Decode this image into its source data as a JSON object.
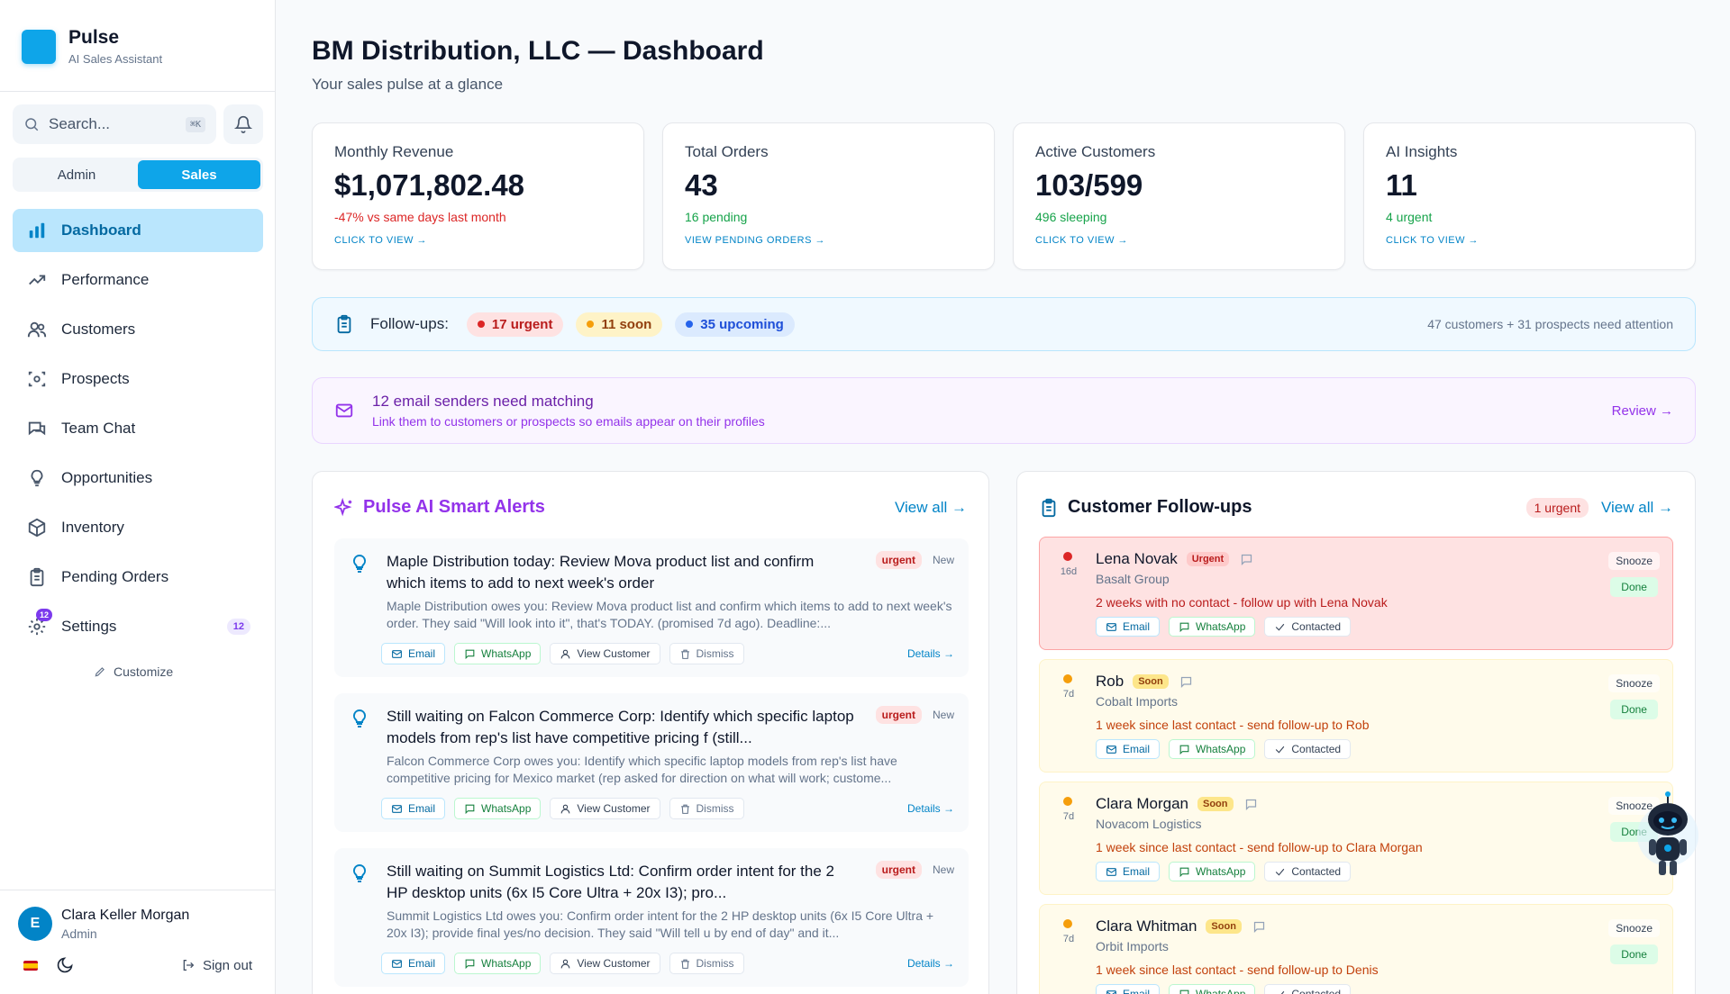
{
  "app": {
    "name": "Pulse",
    "subtitle": "AI Sales Assistant"
  },
  "search": {
    "placeholder": "Search...",
    "shortcut": "⌘K"
  },
  "roles": [
    "Admin",
    "Sales"
  ],
  "nav": [
    {
      "label": "Dashboard",
      "icon": "bar-chart-icon"
    },
    {
      "label": "Performance",
      "icon": "trending-up-icon"
    },
    {
      "label": "Customers",
      "icon": "users-icon"
    },
    {
      "label": "Prospects",
      "icon": "scan-target-icon"
    },
    {
      "label": "Team Chat",
      "icon": "chat-icon"
    },
    {
      "label": "Opportunities",
      "icon": "lightbulb-icon"
    },
    {
      "label": "Inventory",
      "icon": "box-icon"
    },
    {
      "label": "Pending Orders",
      "icon": "clipboard-icon"
    },
    {
      "label": "Settings",
      "icon": "gear-icon",
      "badge": "12"
    }
  ],
  "customize_label": "Customize",
  "user": {
    "initial": "E",
    "name": "Clara Keller Morgan",
    "role": "Admin"
  },
  "signout_label": "Sign out",
  "page": {
    "title": "BM Distribution, LLC — Dashboard",
    "subtitle": "Your sales pulse at a glance"
  },
  "stats": [
    {
      "label": "Monthly Revenue",
      "value": "$1,071,802.48",
      "sub": "-47% vs same days last month",
      "sub_color": "#dc2626",
      "link": "CLICK TO VIEW →"
    },
    {
      "label": "Total Orders",
      "value": "43",
      "sub": "16 pending",
      "sub_color": "#16a34a",
      "link": "VIEW PENDING ORDERS →"
    },
    {
      "label": "Active Customers",
      "value": "103/599",
      "sub": "496 sleeping",
      "sub_color": "#16a34a",
      "link": "CLICK TO VIEW →"
    },
    {
      "label": "AI Insights",
      "value": "11",
      "sub": "4 urgent",
      "sub_color": "#16a34a",
      "link": "CLICK TO VIEW →"
    }
  ],
  "followups_bar": {
    "label": "Follow-ups:",
    "urgent": "17 urgent",
    "soon": "11 soon",
    "upcoming": "35 upcoming",
    "summary": "47 customers + 31 prospects need attention"
  },
  "email_bar": {
    "title": "12 email senders need matching",
    "subtitle": "Link them to customers or prospects so emails appear on their profiles",
    "action": "Review →"
  },
  "alerts_panel": {
    "title": "Pulse AI Smart Alerts",
    "view_all": "View all →",
    "items": [
      {
        "title": "Maple Distribution today: Review Mova product list and confirm which items to add to next week's order",
        "tag": "urgent",
        "status": "New",
        "desc": "Maple Distribution owes you: Review Mova product list and confirm which items to add to next week's order. They said \"Will look into it\", that's TODAY. (promised 7d ago). Deadline:..."
      },
      {
        "title": "Still waiting on Falcon Commerce Corp: Identify which specific laptop models from rep's list have competitive pricing f (still...",
        "tag": "urgent",
        "status": "New",
        "desc": "Falcon Commerce Corp owes you: Identify which specific laptop models from rep's list have competitive pricing for Mexico market (rep asked for direction on what will work; custome..."
      },
      {
        "title": "Still waiting on Summit Logistics Ltd: Confirm order intent for the 2 HP desktop units (6x I5 Core Ultra + 20x I3); pro...",
        "tag": "urgent",
        "status": "New",
        "desc": "Summit Logistics Ltd owes you: Confirm order intent for the 2 HP desktop units (6x I5 Core Ultra + 20x I3); provide final yes/no decision. They said \"Will tell u by end of day\" and it..."
      }
    ],
    "actions": {
      "email": "Email",
      "whatsapp": "WhatsApp",
      "view_customer": "View Customer",
      "dismiss": "Dismiss",
      "details": "Details →"
    }
  },
  "followups_panel": {
    "title": "Customer Follow-ups",
    "urgent_chip": "1 urgent",
    "view_all": "View all →",
    "actions": {
      "email": "Email",
      "whatsapp": "WhatsApp",
      "contacted": "Contacted",
      "snooze": "Snooze",
      "done": "Done"
    },
    "items": [
      {
        "name": "Lena Novak",
        "tag": "Urgent",
        "company": "Basalt Group",
        "days": "16d",
        "message": "2 weeks with no contact - follow up with Lena Novak"
      },
      {
        "name": "Rob",
        "tag": "Soon",
        "company": "Cobalt Imports",
        "days": "7d",
        "message": "1 week since last contact - send follow-up to Rob"
      },
      {
        "name": "Clara Morgan",
        "tag": "Soon",
        "company": "Novacom Logistics",
        "days": "7d",
        "message": "1 week since last contact - send follow-up to Clara Morgan"
      },
      {
        "name": "Clara Whitman",
        "tag": "Soon",
        "company": "Orbit Imports",
        "days": "7d",
        "message": "1 week since last contact - send follow-up to Denis"
      }
    ]
  },
  "colors": {
    "accent": "#0ea5e9",
    "purple": "#7c3aed",
    "urgent": "#dc2626",
    "soon": "#f59e0b",
    "upcoming": "#2563eb"
  }
}
